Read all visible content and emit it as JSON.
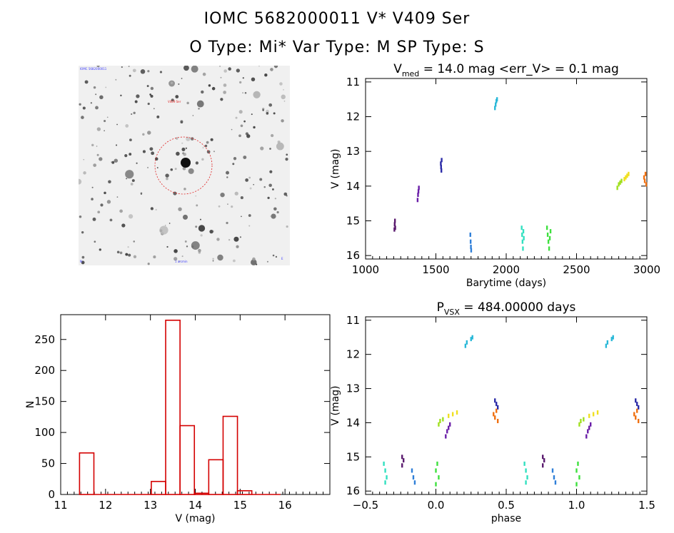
{
  "header": {
    "title_line1": "IOMC 5682000011    V* V409 Ser",
    "title_line2": "O Type: Mi*  Var Type: M   SP Type: S"
  },
  "image_panel": {
    "label_top_left": "IOMC 5682000011",
    "label_marker": "V409 Ser",
    "label_bottom_left": "N",
    "label_bottom_center": "1 arcmin",
    "label_bottom_right": "E"
  },
  "chart_data": [
    {
      "id": "lightcurve",
      "type": "scatter",
      "title_prefix": "V",
      "title_sub": "med",
      "title_rest": " = 14.0 mag <err_V> = 0.1 mag",
      "xlabel": "Barytime (days)",
      "ylabel": "V (mag)",
      "xlim": [
        1000,
        3000
      ],
      "ylim": [
        16.1,
        10.9
      ],
      "xticks": [
        1000,
        1500,
        2000,
        2500,
        3000
      ],
      "yticks": [
        11,
        12,
        13,
        14,
        15,
        16
      ],
      "series": [
        {
          "color": "#5a1a6e",
          "points": [
            [
              1205,
              15.25
            ],
            [
              1207,
              15.1
            ],
            [
              1209,
              15.0
            ],
            [
              1211,
              15.2
            ]
          ]
        },
        {
          "color": "#6a1fa8",
          "points": [
            [
              1370,
              14.4
            ],
            [
              1373,
              14.25
            ],
            [
              1376,
              14.15
            ],
            [
              1379,
              14.05
            ]
          ]
        },
        {
          "color": "#2c2ca8",
          "points": [
            [
              1535,
              13.35
            ],
            [
              1537,
              13.45
            ],
            [
              1539,
              13.55
            ],
            [
              1541,
              13.25
            ]
          ]
        },
        {
          "color": "#2f7fd8",
          "points": [
            [
              1745,
              15.4
            ],
            [
              1747,
              15.6
            ],
            [
              1749,
              15.75
            ],
            [
              1751,
              15.85
            ]
          ]
        },
        {
          "color": "#29b8d8",
          "points": [
            [
              1920,
              11.75
            ],
            [
              1925,
              11.65
            ],
            [
              1930,
              11.55
            ],
            [
              1935,
              11.5
            ]
          ]
        },
        {
          "color": "#33e0c0",
          "points": [
            [
              2110,
              15.2
            ],
            [
              2113,
              15.4
            ],
            [
              2116,
              15.6
            ],
            [
              2119,
              15.8
            ],
            [
              2122,
              15.3
            ],
            [
              2125,
              15.5
            ]
          ]
        },
        {
          "color": "#3ee03e",
          "points": [
            [
              2290,
              15.2
            ],
            [
              2295,
              15.4
            ],
            [
              2300,
              15.6
            ],
            [
              2305,
              15.8
            ],
            [
              2310,
              15.5
            ],
            [
              2315,
              15.3
            ]
          ]
        },
        {
          "color": "#a0e020",
          "points": [
            [
              2790,
              14.05
            ],
            [
              2800,
              13.95
            ],
            [
              2810,
              13.9
            ],
            [
              2820,
              13.85
            ]
          ]
        },
        {
          "color": "#f0e020",
          "points": [
            [
              2840,
              13.8
            ],
            [
              2850,
              13.75
            ],
            [
              2860,
              13.7
            ],
            [
              2870,
              13.65
            ]
          ]
        },
        {
          "color": "#f07010",
          "points": [
            [
              2980,
              13.75
            ],
            [
              2985,
              13.85
            ],
            [
              2990,
              13.65
            ],
            [
              2995,
              13.95
            ]
          ]
        }
      ]
    },
    {
      "id": "phased",
      "type": "scatter",
      "title_prefix": "P",
      "title_sub": "VSX",
      "title_rest": " = 484.00000 days",
      "xlabel": "phase",
      "ylabel": "V (mag)",
      "xlim": [
        -0.5,
        1.5
      ],
      "ylim": [
        16.1,
        10.9
      ],
      "xticks": [
        -0.5,
        0.0,
        0.5,
        1.0,
        1.5
      ],
      "xtick_labels": [
        "−0.5",
        "0.0",
        "0.5",
        "1.0",
        "1.5"
      ],
      "yticks": [
        11,
        12,
        13,
        14,
        15,
        16
      ],
      "series": [
        {
          "color": "#33e0c0",
          "points": [
            [
              -0.37,
              15.2
            ],
            [
              -0.36,
              15.4
            ],
            [
              -0.35,
              15.6
            ],
            [
              -0.36,
              15.75
            ],
            [
              0.63,
              15.2
            ],
            [
              0.64,
              15.4
            ],
            [
              0.65,
              15.6
            ],
            [
              0.64,
              15.75
            ]
          ]
        },
        {
          "color": "#5a1a6e",
          "points": [
            [
              -0.24,
              15.25
            ],
            [
              -0.23,
              15.1
            ],
            [
              -0.24,
              15.0
            ],
            [
              0.76,
              15.25
            ],
            [
              0.77,
              15.1
            ],
            [
              0.76,
              15.0
            ]
          ]
        },
        {
          "color": "#2f7fd8",
          "points": [
            [
              -0.17,
              15.4
            ],
            [
              -0.16,
              15.6
            ],
            [
              -0.15,
              15.75
            ],
            [
              0.83,
              15.4
            ],
            [
              0.84,
              15.6
            ],
            [
              0.85,
              15.75
            ]
          ]
        },
        {
          "color": "#3ee03e",
          "points": [
            [
              0.01,
              15.2
            ],
            [
              0.0,
              15.4
            ],
            [
              0.02,
              15.6
            ],
            [
              0.0,
              15.8
            ],
            [
              1.01,
              15.2
            ],
            [
              1.0,
              15.4
            ],
            [
              1.02,
              15.6
            ],
            [
              1.0,
              15.8
            ]
          ]
        },
        {
          "color": "#a0e020",
          "points": [
            [
              0.02,
              14.05
            ],
            [
              0.03,
              13.95
            ],
            [
              0.05,
              13.9
            ],
            [
              1.02,
              14.05
            ],
            [
              1.03,
              13.95
            ],
            [
              1.05,
              13.9
            ]
          ]
        },
        {
          "color": "#f0e020",
          "points": [
            [
              0.09,
              13.8
            ],
            [
              0.12,
              13.75
            ],
            [
              0.15,
              13.7
            ],
            [
              1.09,
              13.8
            ],
            [
              1.12,
              13.75
            ],
            [
              1.15,
              13.7
            ]
          ]
        },
        {
          "color": "#6a1fa8",
          "points": [
            [
              0.07,
              14.4
            ],
            [
              0.08,
              14.25
            ],
            [
              0.09,
              14.15
            ],
            [
              0.1,
              14.05
            ],
            [
              1.07,
              14.4
            ],
            [
              1.08,
              14.25
            ],
            [
              1.09,
              14.15
            ],
            [
              1.1,
              14.05
            ]
          ]
        },
        {
          "color": "#29b8d8",
          "points": [
            [
              0.21,
              11.75
            ],
            [
              0.22,
              11.65
            ],
            [
              0.25,
              11.55
            ],
            [
              0.26,
              11.5
            ],
            [
              1.21,
              11.75
            ],
            [
              1.22,
              11.65
            ],
            [
              1.25,
              11.55
            ],
            [
              1.26,
              11.5
            ]
          ]
        },
        {
          "color": "#f07010",
          "points": [
            [
              0.41,
              13.75
            ],
            [
              0.42,
              13.85
            ],
            [
              0.43,
              13.65
            ],
            [
              0.44,
              13.95
            ],
            [
              1.41,
              13.75
            ],
            [
              1.42,
              13.85
            ],
            [
              1.43,
              13.65
            ],
            [
              1.44,
              13.95
            ]
          ]
        },
        {
          "color": "#2c2ca8",
          "points": [
            [
              0.42,
              13.35
            ],
            [
              0.43,
              13.45
            ],
            [
              0.44,
              13.55
            ],
            [
              1.42,
              13.35
            ],
            [
              1.43,
              13.45
            ],
            [
              1.44,
              13.55
            ]
          ]
        }
      ]
    },
    {
      "id": "histogram",
      "type": "bar",
      "xlabel": "V (mag)",
      "ylabel": "N",
      "xlim": [
        11,
        17
      ],
      "ylim": [
        0,
        290
      ],
      "xticks": [
        11,
        12,
        13,
        14,
        15,
        16
      ],
      "yticks": [
        0,
        50,
        100,
        150,
        200,
        250
      ],
      "bar_color": "#d40000",
      "bin_width": 0.32,
      "bin_starts": [
        11.42,
        11.74,
        12.06,
        12.38,
        12.7,
        13.02,
        13.34,
        13.66,
        13.98,
        14.3,
        14.62,
        14.94,
        15.26,
        15.58
      ],
      "values": [
        67,
        0,
        0,
        0,
        0,
        21,
        281,
        111,
        2,
        56,
        126,
        6,
        0,
        0
      ]
    }
  ]
}
